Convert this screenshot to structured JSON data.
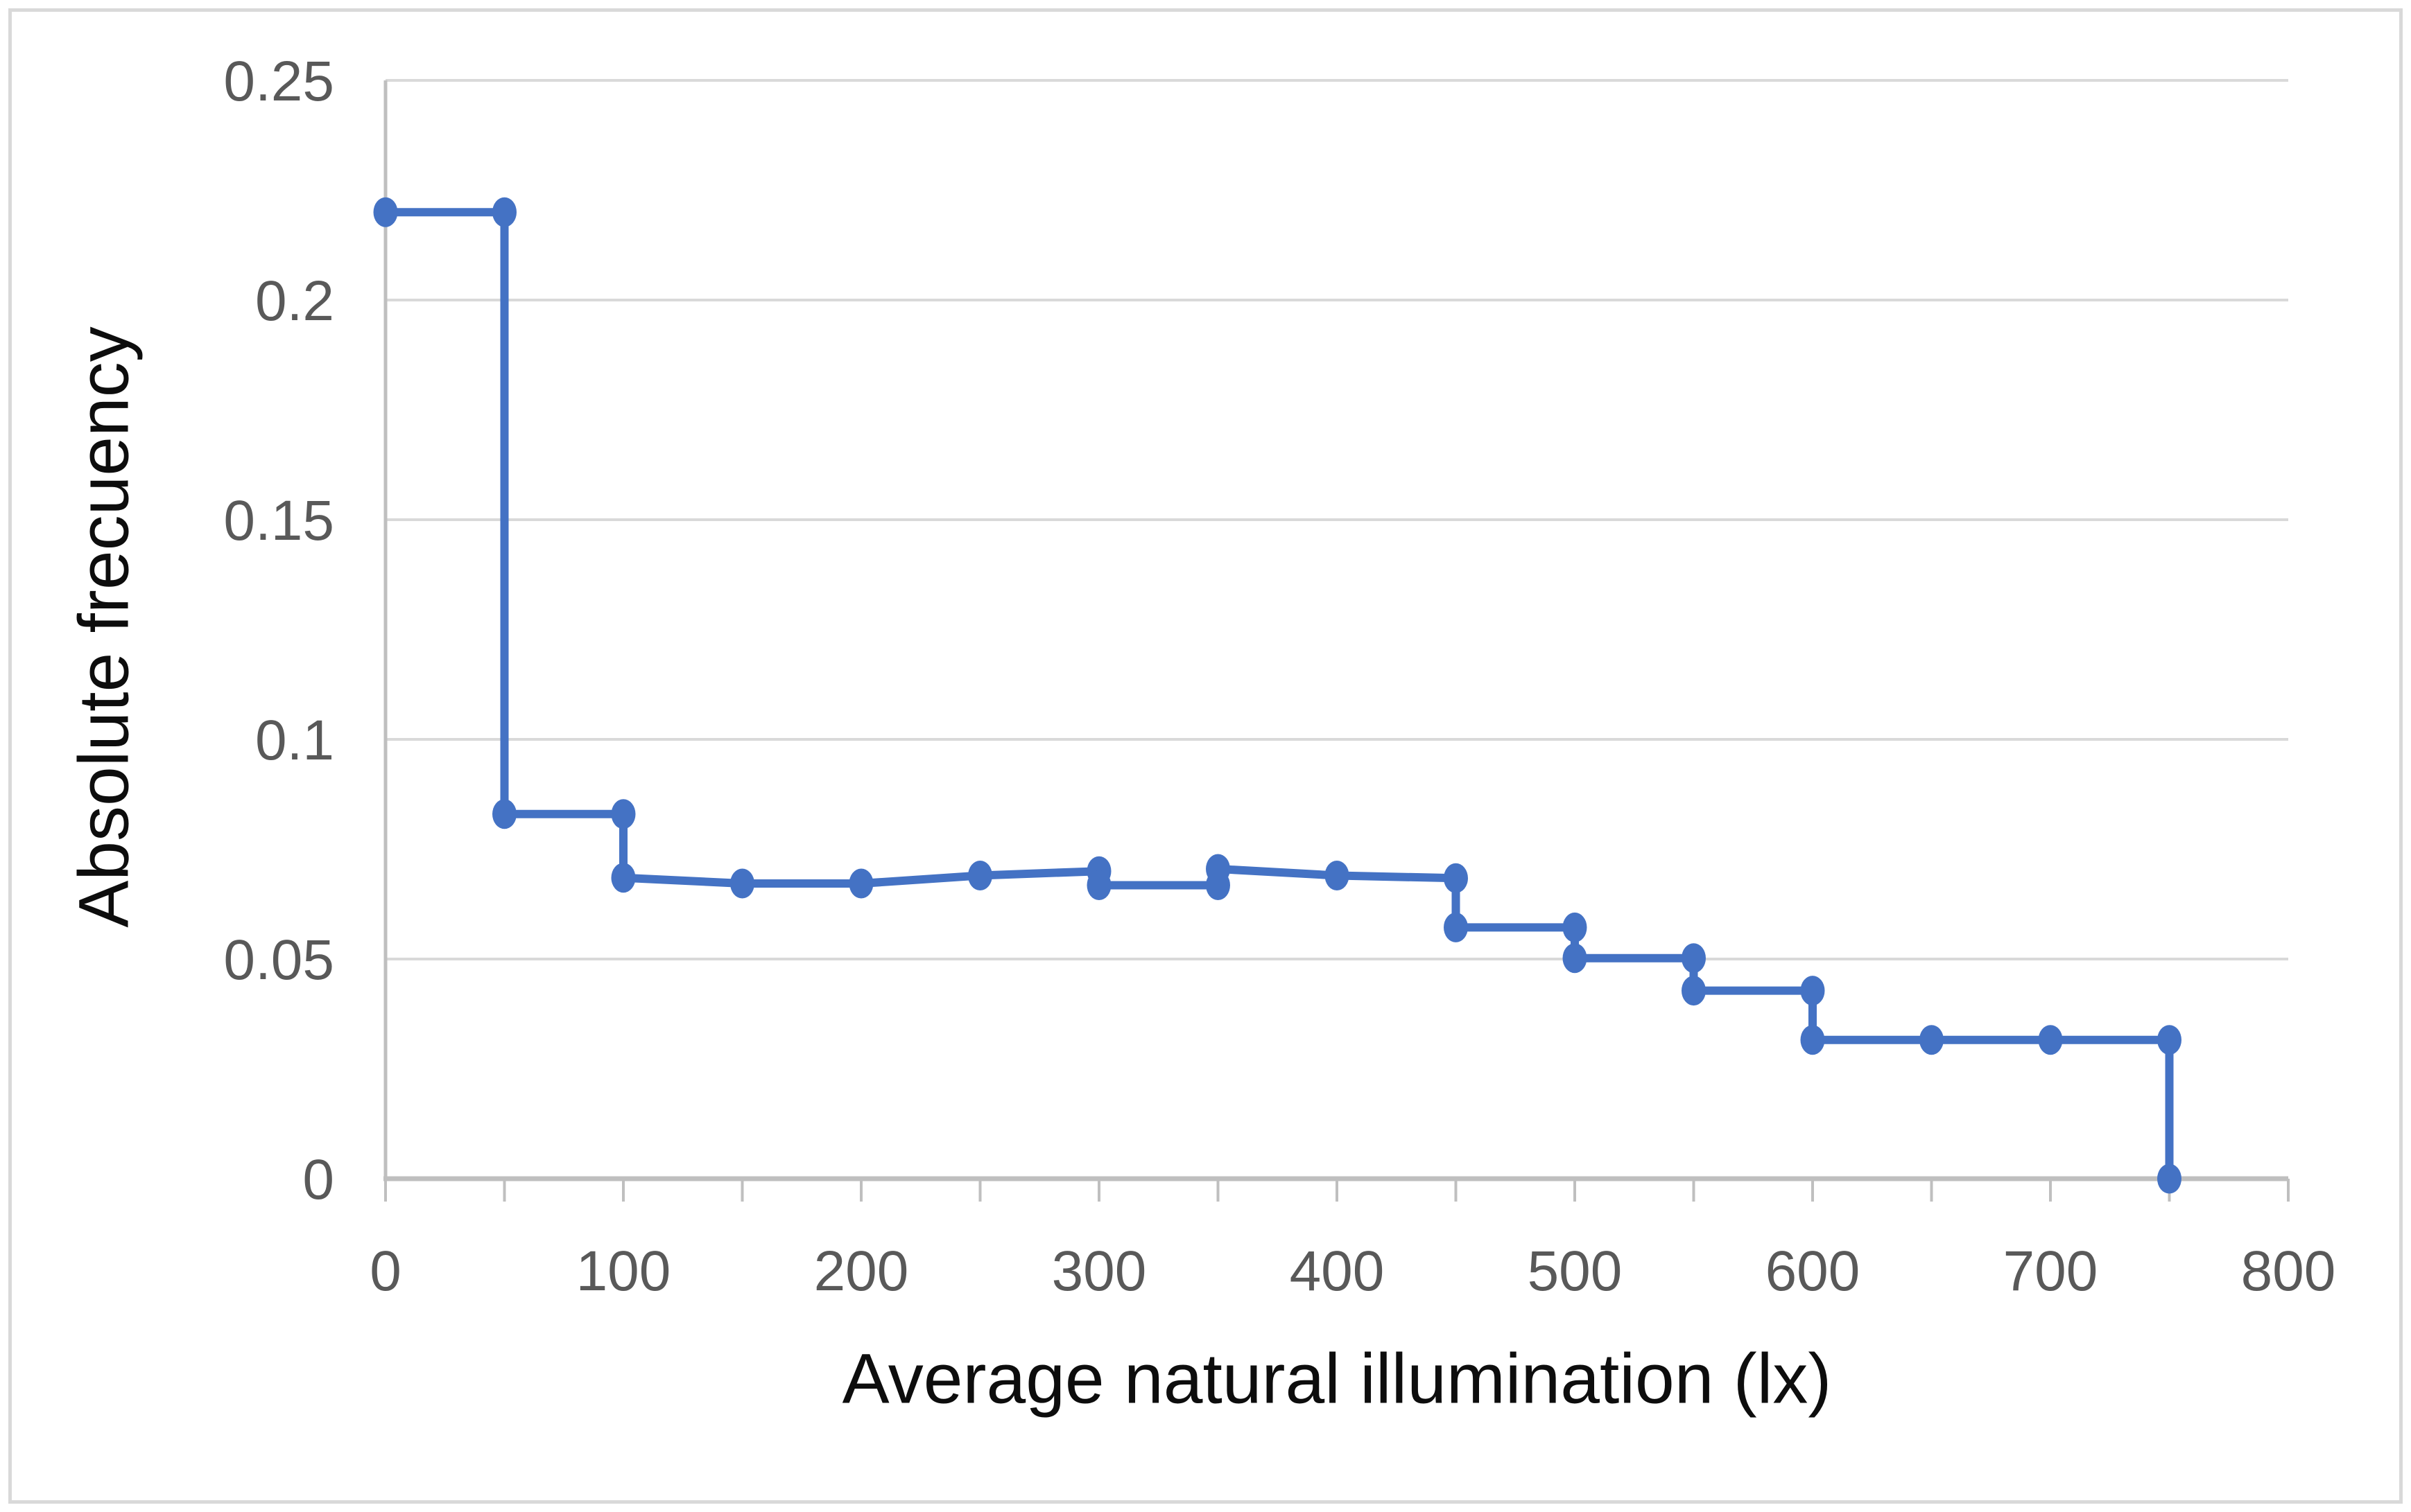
{
  "chart_data": {
    "type": "line",
    "subtype": "step-line-with-markers",
    "title": "",
    "xlabel": "Average natural illumination (lx)",
    "ylabel": "Absolute frecuency",
    "xlim": [
      0,
      800
    ],
    "ylim": [
      0,
      0.25
    ],
    "x_ticks": [
      0,
      100,
      200,
      300,
      400,
      500,
      600,
      700,
      800
    ],
    "x_minor_tick_step": 50,
    "y_ticks": [
      0,
      0.05,
      0.1,
      0.15,
      0.2,
      0.25
    ],
    "y_tick_labels": [
      "0",
      "0.05",
      "0.1",
      "0.15",
      "0.2",
      "0.25"
    ],
    "grid": "horizontal",
    "legend": "none",
    "series": [
      {
        "name": "Absolute frecuency",
        "color": "#4472C4",
        "marker": "circle",
        "points": [
          [
            0,
            0.22
          ],
          [
            50,
            0.22
          ],
          [
            50,
            0.083
          ],
          [
            100,
            0.083
          ],
          [
            100,
            0.0685
          ],
          [
            150,
            0.0672
          ],
          [
            200,
            0.0672
          ],
          [
            250,
            0.069
          ],
          [
            300,
            0.07
          ],
          [
            300,
            0.0668
          ],
          [
            350,
            0.0668
          ],
          [
            350,
            0.0705
          ],
          [
            400,
            0.069
          ],
          [
            450,
            0.0684
          ],
          [
            450,
            0.0572
          ],
          [
            500,
            0.0572
          ],
          [
            500,
            0.0502
          ],
          [
            550,
            0.0502
          ],
          [
            550,
            0.0428
          ],
          [
            600,
            0.0428
          ],
          [
            600,
            0.0316
          ],
          [
            650,
            0.0316
          ],
          [
            700,
            0.0316
          ],
          [
            750,
            0.0316
          ],
          [
            750,
            0
          ]
        ]
      }
    ]
  },
  "style": {
    "series_color": "#4472C4",
    "gridline_color": "#d9d9d9",
    "axis_color": "#bfbfbf",
    "tick_color": "#bfbfbf",
    "tick_label_color": "#595959",
    "title_color": "#0d0d0d",
    "background_color": "#ffffff",
    "outer_border_color": "#d9d9d9"
  }
}
